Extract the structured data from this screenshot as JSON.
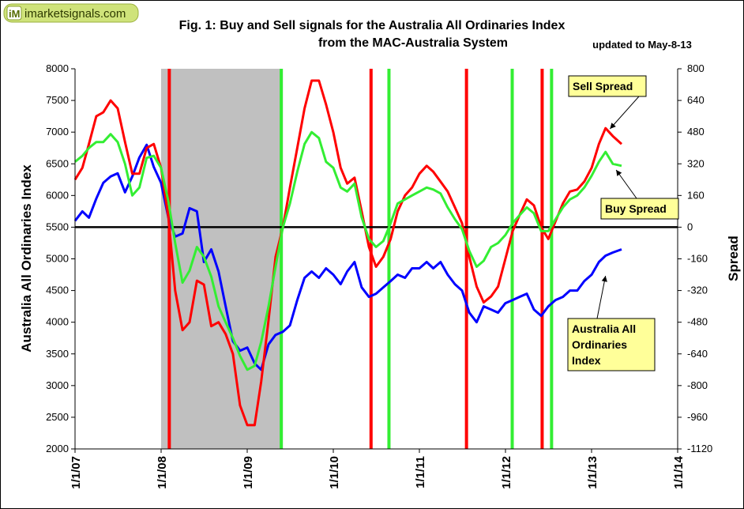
{
  "logo": {
    "badge": "iM",
    "text": "imarketsignals.com"
  },
  "title_line1": "Fig. 1: Buy and Sell signals for the Australia All Ordinaries Index",
  "title_line2": "from the MAC-Australia System",
  "updated": "updated to May-8-13",
  "chart_data": {
    "type": "line",
    "xlabel": "",
    "ylabel": "Australia All Ordinaries Index",
    "y2label": "Spread",
    "x_ticks": [
      "1/1/07",
      "1/1/08",
      "1/1/09",
      "1/1/10",
      "1/1/11",
      "1/1/12",
      "1/1/13",
      "1/1/14"
    ],
    "x_range": [
      "2007-01-01",
      "2014-01-01"
    ],
    "ylim": [
      2000,
      8000
    ],
    "y_ticks": [
      2000,
      2500,
      3000,
      3500,
      4000,
      4500,
      5000,
      5500,
      6000,
      6500,
      7000,
      7500,
      8000
    ],
    "y2lim": [
      -1120,
      800
    ],
    "y2_ticks": [
      -1120,
      -960,
      -800,
      -640,
      -480,
      -320,
      -160,
      0,
      160,
      320,
      480,
      640,
      800
    ],
    "grid": false,
    "zero_line": {
      "axis": "y2",
      "value": 0,
      "color": "#000000"
    },
    "shaded_region": {
      "from": "2008-01-01",
      "to": "2009-06-01",
      "color": "#c0c0c0"
    },
    "signals": [
      {
        "date": "2008-02-05",
        "type": "sell",
        "color": "#ff0000"
      },
      {
        "date": "2009-05-25",
        "type": "buy",
        "color": "#33ee33"
      },
      {
        "date": "2010-06-10",
        "type": "sell",
        "color": "#ff0000"
      },
      {
        "date": "2010-08-25",
        "type": "buy",
        "color": "#33ee33"
      },
      {
        "date": "2011-07-20",
        "type": "sell",
        "color": "#ff0000"
      },
      {
        "date": "2012-01-30",
        "type": "buy",
        "color": "#33ee33"
      },
      {
        "date": "2012-06-05",
        "type": "sell",
        "color": "#ff0000"
      },
      {
        "date": "2012-07-15",
        "type": "buy",
        "color": "#33ee33"
      }
    ],
    "callouts": [
      {
        "series": "Sell Spread",
        "lines": [
          "Sell Spread"
        ]
      },
      {
        "series": "Buy Spread",
        "lines": [
          "Buy Spread"
        ]
      },
      {
        "series": "Australia All Ordinaries Index",
        "lines": [
          "Australia All",
          "Ordinaries",
          "Index"
        ]
      }
    ],
    "series": [
      {
        "name": "Australia All Ordinaries Index",
        "axis": "y",
        "color": "#0000ff",
        "points": [
          [
            "2007-01-01",
            5600
          ],
          [
            "2007-02-01",
            5750
          ],
          [
            "2007-03-01",
            5650
          ],
          [
            "2007-04-01",
            5950
          ],
          [
            "2007-05-01",
            6200
          ],
          [
            "2007-06-01",
            6300
          ],
          [
            "2007-07-01",
            6350
          ],
          [
            "2007-08-01",
            6050
          ],
          [
            "2007-09-01",
            6300
          ],
          [
            "2007-10-01",
            6600
          ],
          [
            "2007-11-01",
            6800
          ],
          [
            "2007-12-01",
            6450
          ],
          [
            "2008-01-01",
            6200
          ],
          [
            "2008-02-01",
            5650
          ],
          [
            "2008-03-01",
            5350
          ],
          [
            "2008-04-01",
            5400
          ],
          [
            "2008-05-01",
            5800
          ],
          [
            "2008-06-01",
            5750
          ],
          [
            "2008-07-01",
            4950
          ],
          [
            "2008-08-01",
            5150
          ],
          [
            "2008-09-01",
            4800
          ],
          [
            "2008-10-01",
            4250
          ],
          [
            "2008-11-01",
            3700
          ],
          [
            "2008-12-01",
            3550
          ],
          [
            "2009-01-01",
            3600
          ],
          [
            "2009-02-01",
            3350
          ],
          [
            "2009-03-01",
            3250
          ],
          [
            "2009-04-01",
            3650
          ],
          [
            "2009-05-01",
            3800
          ],
          [
            "2009-06-01",
            3850
          ],
          [
            "2009-07-01",
            3950
          ],
          [
            "2009-08-01",
            4350
          ],
          [
            "2009-09-01",
            4700
          ],
          [
            "2009-10-01",
            4800
          ],
          [
            "2009-11-01",
            4700
          ],
          [
            "2009-12-01",
            4850
          ],
          [
            "2010-01-01",
            4750
          ],
          [
            "2010-02-01",
            4600
          ],
          [
            "2010-03-01",
            4800
          ],
          [
            "2010-04-01",
            4950
          ],
          [
            "2010-05-01",
            4550
          ],
          [
            "2010-06-01",
            4400
          ],
          [
            "2010-07-01",
            4450
          ],
          [
            "2010-08-01",
            4550
          ],
          [
            "2010-09-01",
            4650
          ],
          [
            "2010-10-01",
            4750
          ],
          [
            "2010-11-01",
            4700
          ],
          [
            "2010-12-01",
            4850
          ],
          [
            "2011-01-01",
            4850
          ],
          [
            "2011-02-01",
            4950
          ],
          [
            "2011-03-01",
            4850
          ],
          [
            "2011-04-01",
            4950
          ],
          [
            "2011-05-01",
            4750
          ],
          [
            "2011-06-01",
            4600
          ],
          [
            "2011-07-01",
            4500
          ],
          [
            "2011-08-01",
            4150
          ],
          [
            "2011-09-01",
            4000
          ],
          [
            "2011-10-01",
            4250
          ],
          [
            "2011-11-01",
            4200
          ],
          [
            "2011-12-01",
            4150
          ],
          [
            "2012-01-01",
            4300
          ],
          [
            "2012-02-01",
            4350
          ],
          [
            "2012-03-01",
            4400
          ],
          [
            "2012-04-01",
            4450
          ],
          [
            "2012-05-01",
            4200
          ],
          [
            "2012-06-01",
            4100
          ],
          [
            "2012-07-01",
            4250
          ],
          [
            "2012-08-01",
            4350
          ],
          [
            "2012-09-01",
            4400
          ],
          [
            "2012-10-01",
            4500
          ],
          [
            "2012-11-01",
            4500
          ],
          [
            "2012-12-01",
            4650
          ],
          [
            "2013-01-01",
            4750
          ],
          [
            "2013-02-01",
            4950
          ],
          [
            "2013-03-01",
            5050
          ],
          [
            "2013-04-01",
            5100
          ],
          [
            "2013-05-08",
            5150
          ]
        ]
      },
      {
        "name": "Sell Spread",
        "axis": "y2",
        "color": "#ff0000",
        "points": [
          [
            "2007-01-01",
            240
          ],
          [
            "2007-02-01",
            300
          ],
          [
            "2007-03-01",
            420
          ],
          [
            "2007-04-01",
            560
          ],
          [
            "2007-05-01",
            580
          ],
          [
            "2007-06-01",
            640
          ],
          [
            "2007-07-01",
            600
          ],
          [
            "2007-08-01",
            430
          ],
          [
            "2007-09-01",
            270
          ],
          [
            "2007-10-01",
            270
          ],
          [
            "2007-11-01",
            400
          ],
          [
            "2007-12-01",
            420
          ],
          [
            "2008-01-01",
            300
          ],
          [
            "2008-02-01",
            50
          ],
          [
            "2008-03-01",
            -320
          ],
          [
            "2008-04-01",
            -520
          ],
          [
            "2008-05-01",
            -480
          ],
          [
            "2008-06-01",
            -270
          ],
          [
            "2008-07-01",
            -290
          ],
          [
            "2008-08-01",
            -500
          ],
          [
            "2008-09-01",
            -480
          ],
          [
            "2008-10-01",
            -540
          ],
          [
            "2008-11-01",
            -640
          ],
          [
            "2008-12-01",
            -900
          ],
          [
            "2009-01-01",
            -1000
          ],
          [
            "2009-02-01",
            -1000
          ],
          [
            "2009-03-01",
            -780
          ],
          [
            "2009-04-01",
            -470
          ],
          [
            "2009-05-01",
            -150
          ],
          [
            "2009-06-01",
            0
          ],
          [
            "2009-07-01",
            200
          ],
          [
            "2009-08-01",
            400
          ],
          [
            "2009-09-01",
            600
          ],
          [
            "2009-10-01",
            740
          ],
          [
            "2009-11-01",
            740
          ],
          [
            "2009-12-01",
            620
          ],
          [
            "2010-01-01",
            480
          ],
          [
            "2010-02-01",
            300
          ],
          [
            "2010-03-01",
            220
          ],
          [
            "2010-04-01",
            250
          ],
          [
            "2010-05-01",
            80
          ],
          [
            "2010-06-01",
            -100
          ],
          [
            "2010-07-01",
            -200
          ],
          [
            "2010-08-01",
            -150
          ],
          [
            "2010-09-01",
            -60
          ],
          [
            "2010-10-01",
            80
          ],
          [
            "2010-11-01",
            160
          ],
          [
            "2010-12-01",
            200
          ],
          [
            "2011-01-01",
            270
          ],
          [
            "2011-02-01",
            310
          ],
          [
            "2011-03-01",
            280
          ],
          [
            "2011-04-01",
            230
          ],
          [
            "2011-05-01",
            180
          ],
          [
            "2011-06-01",
            100
          ],
          [
            "2011-07-01",
            20
          ],
          [
            "2011-08-01",
            -150
          ],
          [
            "2011-09-01",
            -300
          ],
          [
            "2011-10-01",
            -380
          ],
          [
            "2011-11-01",
            -350
          ],
          [
            "2011-12-01",
            -300
          ],
          [
            "2012-01-01",
            -160
          ],
          [
            "2012-02-01",
            -20
          ],
          [
            "2012-03-01",
            60
          ],
          [
            "2012-04-01",
            140
          ],
          [
            "2012-05-01",
            110
          ],
          [
            "2012-06-01",
            0
          ],
          [
            "2012-07-01",
            -60
          ],
          [
            "2012-08-01",
            30
          ],
          [
            "2012-09-01",
            120
          ],
          [
            "2012-10-01",
            180
          ],
          [
            "2012-11-01",
            190
          ],
          [
            "2012-12-01",
            230
          ],
          [
            "2013-01-01",
            300
          ],
          [
            "2013-02-01",
            420
          ],
          [
            "2013-03-01",
            500
          ],
          [
            "2013-04-01",
            460
          ],
          [
            "2013-05-08",
            420
          ]
        ]
      },
      {
        "name": "Buy Spread",
        "axis": "y2",
        "color": "#33ee33",
        "points": [
          [
            "2007-01-01",
            330
          ],
          [
            "2007-02-01",
            360
          ],
          [
            "2007-03-01",
            400
          ],
          [
            "2007-04-01",
            430
          ],
          [
            "2007-05-01",
            430
          ],
          [
            "2007-06-01",
            470
          ],
          [
            "2007-07-01",
            430
          ],
          [
            "2007-08-01",
            320
          ],
          [
            "2007-09-01",
            160
          ],
          [
            "2007-10-01",
            200
          ],
          [
            "2007-11-01",
            350
          ],
          [
            "2007-12-01",
            360
          ],
          [
            "2008-01-01",
            300
          ],
          [
            "2008-02-01",
            130
          ],
          [
            "2008-03-01",
            -80
          ],
          [
            "2008-04-01",
            -280
          ],
          [
            "2008-05-01",
            -220
          ],
          [
            "2008-06-01",
            -100
          ],
          [
            "2008-07-01",
            -150
          ],
          [
            "2008-08-01",
            -250
          ],
          [
            "2008-09-01",
            -400
          ],
          [
            "2008-10-01",
            -480
          ],
          [
            "2008-11-01",
            -560
          ],
          [
            "2008-12-01",
            -650
          ],
          [
            "2009-01-01",
            -720
          ],
          [
            "2009-02-01",
            -700
          ],
          [
            "2009-03-01",
            -580
          ],
          [
            "2009-04-01",
            -400
          ],
          [
            "2009-05-01",
            -200
          ],
          [
            "2009-06-01",
            0
          ],
          [
            "2009-07-01",
            120
          ],
          [
            "2009-08-01",
            280
          ],
          [
            "2009-09-01",
            420
          ],
          [
            "2009-10-01",
            480
          ],
          [
            "2009-11-01",
            450
          ],
          [
            "2009-12-01",
            330
          ],
          [
            "2010-01-01",
            300
          ],
          [
            "2010-02-01",
            200
          ],
          [
            "2010-03-01",
            180
          ],
          [
            "2010-04-01",
            220
          ],
          [
            "2010-05-01",
            50
          ],
          [
            "2010-06-01",
            -60
          ],
          [
            "2010-07-01",
            -100
          ],
          [
            "2010-08-01",
            -70
          ],
          [
            "2010-09-01",
            20
          ],
          [
            "2010-10-01",
            120
          ],
          [
            "2010-11-01",
            140
          ],
          [
            "2010-12-01",
            160
          ],
          [
            "2011-01-01",
            180
          ],
          [
            "2011-02-01",
            200
          ],
          [
            "2011-03-01",
            190
          ],
          [
            "2011-04-01",
            170
          ],
          [
            "2011-05-01",
            100
          ],
          [
            "2011-06-01",
            40
          ],
          [
            "2011-07-01",
            -10
          ],
          [
            "2011-08-01",
            -120
          ],
          [
            "2011-09-01",
            -200
          ],
          [
            "2011-10-01",
            -170
          ],
          [
            "2011-11-01",
            -100
          ],
          [
            "2011-12-01",
            -80
          ],
          [
            "2012-01-01",
            -40
          ],
          [
            "2012-02-01",
            20
          ],
          [
            "2012-03-01",
            60
          ],
          [
            "2012-04-01",
            100
          ],
          [
            "2012-05-01",
            70
          ],
          [
            "2012-06-01",
            -20
          ],
          [
            "2012-07-01",
            -20
          ],
          [
            "2012-08-01",
            40
          ],
          [
            "2012-09-01",
            100
          ],
          [
            "2012-10-01",
            140
          ],
          [
            "2012-11-01",
            160
          ],
          [
            "2012-12-01",
            200
          ],
          [
            "2013-01-01",
            260
          ],
          [
            "2013-02-01",
            330
          ],
          [
            "2013-03-01",
            380
          ],
          [
            "2013-04-01",
            320
          ],
          [
            "2013-05-08",
            310
          ]
        ]
      }
    ]
  }
}
